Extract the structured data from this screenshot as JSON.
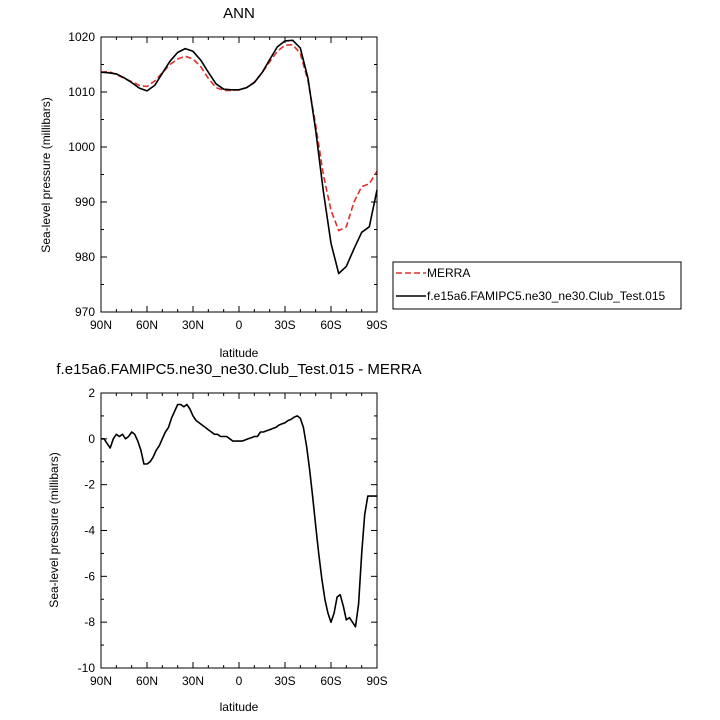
{
  "colors": {
    "merra": "#e0302a",
    "model": "#000000",
    "axis": "#000000",
    "background": "#ffffff"
  },
  "chart_data": [
    {
      "type": "line",
      "title": "ANN",
      "xlabel": "latitude",
      "ylabel": "Sea-level pressure (millibars)",
      "xlim": [
        90,
        -90
      ],
      "ylim": [
        970,
        1020
      ],
      "xticks": [
        90,
        60,
        30,
        0,
        -30,
        -60,
        -90
      ],
      "xtick_labels": [
        "90N",
        "60N",
        "30N",
        "0",
        "30S",
        "60S",
        "90S"
      ],
      "yticks": [
        970,
        980,
        990,
        1000,
        1010,
        1020
      ],
      "ytick_labels": [
        "970",
        "980",
        "990",
        "1000",
        "1010",
        "1020"
      ],
      "legend_position": "right",
      "grid": false,
      "series": [
        {
          "name": "MERRA",
          "style": "dashed",
          "color": "#e0302a",
          "x": [
            90,
            85,
            80,
            75,
            70,
            65,
            60,
            55,
            50,
            45,
            40,
            35,
            30,
            25,
            20,
            15,
            10,
            5,
            0,
            -5,
            -10,
            -15,
            -20,
            -25,
            -30,
            -35,
            -40,
            -45,
            -50,
            -55,
            -60,
            -65,
            -70,
            -75,
            -80,
            -85,
            -90
          ],
          "values": [
            1013.6,
            1013.7,
            1013.2,
            1012.5,
            1011.9,
            1011.2,
            1011.0,
            1012.0,
            1013.5,
            1015.0,
            1016.0,
            1016.5,
            1016.0,
            1014.6,
            1012.5,
            1010.8,
            1010.3,
            1010.3,
            1010.4,
            1010.8,
            1011.8,
            1013.5,
            1015.5,
            1017.4,
            1018.5,
            1018.6,
            1017.0,
            1012.0,
            1004.0,
            995.0,
            988.5,
            984.8,
            985.5,
            990.0,
            992.8,
            993.3,
            995.6
          ]
        },
        {
          "name": "f.e15a6.FAMIPC5.ne30_ne30.Club_Test.015",
          "style": "solid",
          "color": "#000000",
          "x": [
            90,
            85,
            80,
            75,
            70,
            65,
            60,
            55,
            50,
            45,
            40,
            35,
            30,
            25,
            20,
            15,
            10,
            5,
            0,
            -5,
            -10,
            -15,
            -20,
            -25,
            -30,
            -35,
            -40,
            -45,
            -50,
            -55,
            -60,
            -65,
            -70,
            -75,
            -80,
            -85,
            -90
          ],
          "values": [
            1013.6,
            1013.5,
            1013.3,
            1012.6,
            1011.7,
            1010.7,
            1010.2,
            1011.2,
            1013.4,
            1015.6,
            1017.2,
            1017.9,
            1017.4,
            1015.8,
            1013.6,
            1011.5,
            1010.5,
            1010.4,
            1010.4,
            1010.8,
            1011.7,
            1013.5,
            1015.9,
            1018.2,
            1019.3,
            1019.4,
            1018.0,
            1012.5,
            1003.0,
            992.0,
            982.5,
            977.0,
            978.3,
            981.5,
            984.5,
            985.5,
            992.2
          ]
        }
      ]
    },
    {
      "type": "line",
      "title": "f.e15a6.FAMIPC5.ne30_ne30.Club_Test.015 - MERRA",
      "xlabel": "latitude",
      "ylabel": "Sea-level pressure (millibars)",
      "xlim": [
        90,
        -90
      ],
      "ylim": [
        -10,
        2
      ],
      "xticks": [
        90,
        60,
        30,
        0,
        -30,
        -60,
        -90
      ],
      "xtick_labels": [
        "90N",
        "60N",
        "30N",
        "0",
        "30S",
        "60S",
        "90S"
      ],
      "yticks": [
        -10,
        -8,
        -6,
        -4,
        -2,
        0,
        2
      ],
      "ytick_labels": [
        "-10",
        "-8",
        "-6",
        "-4",
        "-2",
        "0",
        "2"
      ],
      "grid": false,
      "series": [
        {
          "style": "solid",
          "color": "#000000",
          "x": [
            90,
            88,
            86,
            84,
            82,
            80,
            78,
            76,
            74,
            72,
            70,
            68,
            66,
            64,
            62,
            60,
            58,
            56,
            54,
            52,
            50,
            48,
            46,
            44,
            42,
            40,
            38,
            36,
            34,
            32,
            30,
            28,
            26,
            24,
            22,
            20,
            18,
            16,
            14,
            12,
            10,
            8,
            6,
            4,
            2,
            0,
            -2,
            -4,
            -6,
            -8,
            -10,
            -12,
            -14,
            -16,
            -18,
            -20,
            -22,
            -24,
            -26,
            -28,
            -30,
            -32,
            -34,
            -36,
            -38,
            -40,
            -42,
            -44,
            -46,
            -48,
            -50,
            -52,
            -54,
            -56,
            -58,
            -60,
            -62,
            -64,
            -66,
            -68,
            -70,
            -72,
            -74,
            -76,
            -78,
            -80,
            -82,
            -84,
            -86,
            -88,
            -90
          ],
          "values": [
            0.0,
            0.0,
            -0.2,
            -0.4,
            0.0,
            0.2,
            0.1,
            0.2,
            0.0,
            0.1,
            0.3,
            0.2,
            -0.1,
            -0.5,
            -1.1,
            -1.1,
            -1.0,
            -0.8,
            -0.5,
            -0.3,
            0.0,
            0.3,
            0.5,
            0.9,
            1.2,
            1.5,
            1.5,
            1.4,
            1.5,
            1.3,
            1.0,
            0.8,
            0.7,
            0.6,
            0.5,
            0.4,
            0.3,
            0.2,
            0.2,
            0.1,
            0.1,
            0.1,
            0.0,
            -0.1,
            -0.1,
            -0.1,
            -0.1,
            -0.05,
            0.0,
            0.05,
            0.1,
            0.1,
            0.3,
            0.3,
            0.35,
            0.4,
            0.45,
            0.5,
            0.6,
            0.65,
            0.7,
            0.8,
            0.85,
            0.95,
            1.0,
            0.9,
            0.5,
            -0.3,
            -1.3,
            -2.5,
            -3.8,
            -5.0,
            -6.1,
            -7.0,
            -7.6,
            -8.0,
            -7.6,
            -6.9,
            -6.8,
            -7.3,
            -7.9,
            -7.8,
            -8.0,
            -8.2,
            -7.2,
            -5.0,
            -3.3,
            -2.5,
            -2.5,
            -2.5,
            -2.5
          ]
        }
      ]
    }
  ]
}
